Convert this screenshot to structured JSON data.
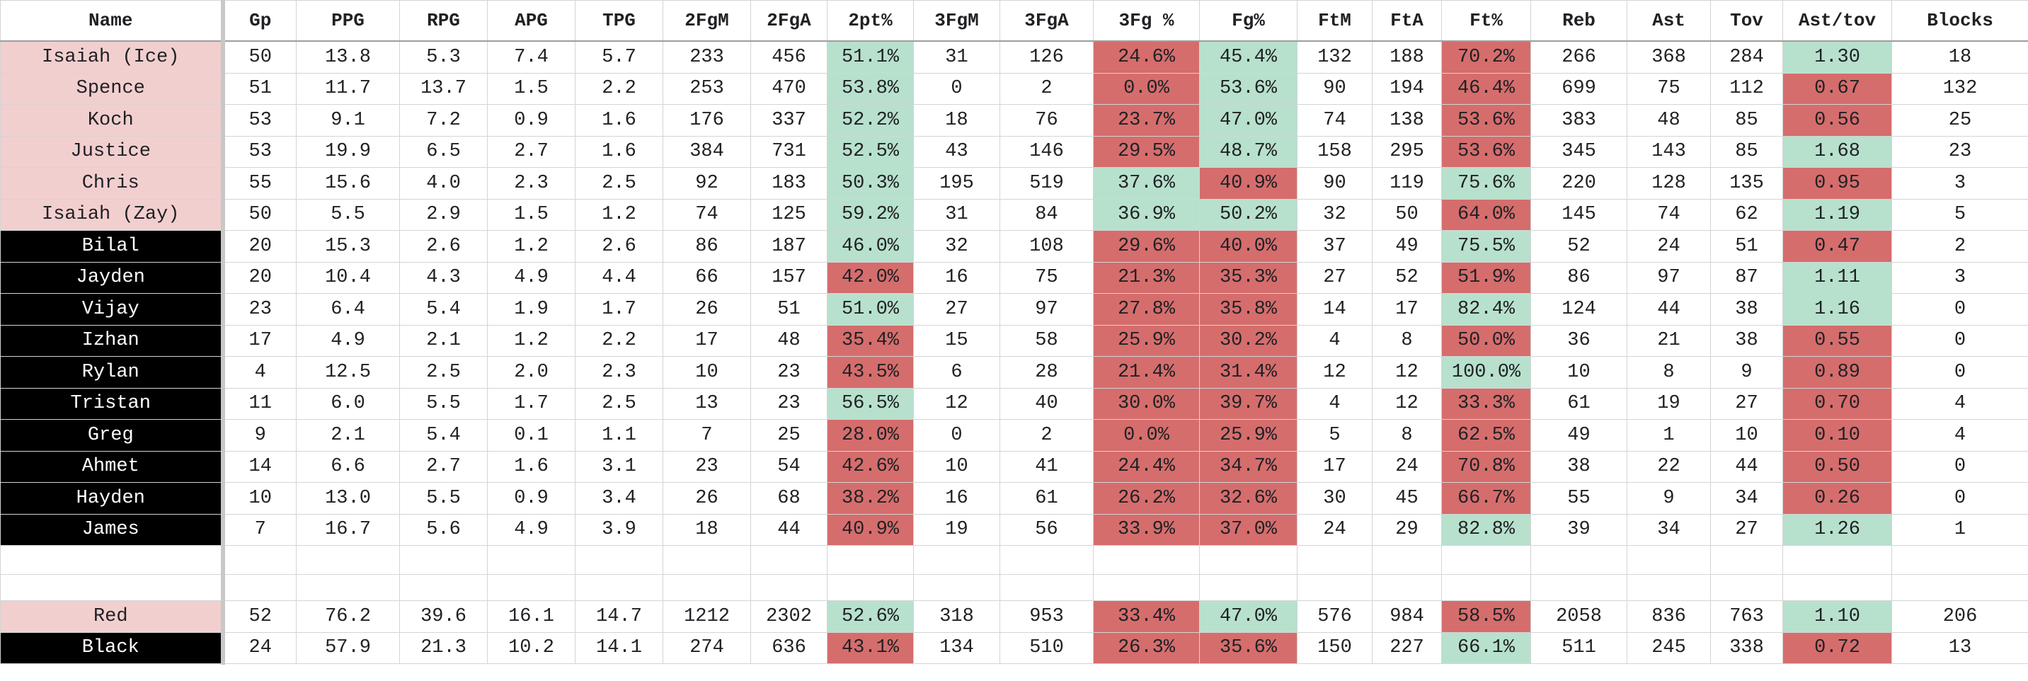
{
  "colors": {
    "good": "#b7e1cd",
    "bad": "#d56d6d",
    "red_team": "#f2cfcf",
    "black_team": "#000000"
  },
  "headers": [
    "Name",
    "Gp",
    "PPG",
    "RPG",
    "APG",
    "TPG",
    "2FgM",
    "2FgA",
    "2pt%",
    "3FgM",
    "3FgA",
    "3Fg %",
    "Fg%",
    "FtM",
    "FtA",
    "Ft%",
    "Reb",
    "Ast",
    "Tov",
    "Ast/tov",
    "Blocks"
  ],
  "players": [
    {
      "team": "red",
      "cells": [
        "Isaiah (Ice)",
        "50",
        "13.8",
        "5.3",
        "7.4",
        "5.7",
        "233",
        "456",
        "51.1%",
        "31",
        "126",
        "24.6%",
        "45.4%",
        "132",
        "188",
        "70.2%",
        "266",
        "368",
        "284",
        "1.30",
        "18"
      ],
      "hl": [
        "",
        "",
        "",
        "",
        "",
        "",
        "",
        "",
        "g",
        "",
        "",
        "r",
        "g",
        "",
        "",
        "r",
        "",
        "",
        "",
        "g",
        ""
      ]
    },
    {
      "team": "red",
      "cells": [
        "Spence",
        "51",
        "11.7",
        "13.7",
        "1.5",
        "2.2",
        "253",
        "470",
        "53.8%",
        "0",
        "2",
        "0.0%",
        "53.6%",
        "90",
        "194",
        "46.4%",
        "699",
        "75",
        "112",
        "0.67",
        "132"
      ],
      "hl": [
        "",
        "",
        "",
        "",
        "",
        "",
        "",
        "",
        "g",
        "",
        "",
        "r",
        "g",
        "",
        "",
        "r",
        "",
        "",
        "",
        "r",
        ""
      ]
    },
    {
      "team": "red",
      "cells": [
        "Koch",
        "53",
        "9.1",
        "7.2",
        "0.9",
        "1.6",
        "176",
        "337",
        "52.2%",
        "18",
        "76",
        "23.7%",
        "47.0%",
        "74",
        "138",
        "53.6%",
        "383",
        "48",
        "85",
        "0.56",
        "25"
      ],
      "hl": [
        "",
        "",
        "",
        "",
        "",
        "",
        "",
        "",
        "g",
        "",
        "",
        "r",
        "g",
        "",
        "",
        "r",
        "",
        "",
        "",
        "r",
        ""
      ]
    },
    {
      "team": "red",
      "cells": [
        "Justice",
        "53",
        "19.9",
        "6.5",
        "2.7",
        "1.6",
        "384",
        "731",
        "52.5%",
        "43",
        "146",
        "29.5%",
        "48.7%",
        "158",
        "295",
        "53.6%",
        "345",
        "143",
        "85",
        "1.68",
        "23"
      ],
      "hl": [
        "",
        "",
        "",
        "",
        "",
        "",
        "",
        "",
        "g",
        "",
        "",
        "r",
        "g",
        "",
        "",
        "r",
        "",
        "",
        "",
        "g",
        ""
      ]
    },
    {
      "team": "red",
      "cells": [
        "Chris",
        "55",
        "15.6",
        "4.0",
        "2.3",
        "2.5",
        "92",
        "183",
        "50.3%",
        "195",
        "519",
        "37.6%",
        "40.9%",
        "90",
        "119",
        "75.6%",
        "220",
        "128",
        "135",
        "0.95",
        "3"
      ],
      "hl": [
        "",
        "",
        "",
        "",
        "",
        "",
        "",
        "",
        "g",
        "",
        "",
        "g",
        "r",
        "",
        "",
        "g",
        "",
        "",
        "",
        "r",
        ""
      ]
    },
    {
      "team": "red",
      "cells": [
        "Isaiah (Zay)",
        "50",
        "5.5",
        "2.9",
        "1.5",
        "1.2",
        "74",
        "125",
        "59.2%",
        "31",
        "84",
        "36.9%",
        "50.2%",
        "32",
        "50",
        "64.0%",
        "145",
        "74",
        "62",
        "1.19",
        "5"
      ],
      "hl": [
        "",
        "",
        "",
        "",
        "",
        "",
        "",
        "",
        "g",
        "",
        "",
        "g",
        "g",
        "",
        "",
        "r",
        "",
        "",
        "",
        "g",
        ""
      ]
    },
    {
      "team": "black",
      "cells": [
        "Bilal",
        "20",
        "15.3",
        "2.6",
        "1.2",
        "2.6",
        "86",
        "187",
        "46.0%",
        "32",
        "108",
        "29.6%",
        "40.0%",
        "37",
        "49",
        "75.5%",
        "52",
        "24",
        "51",
        "0.47",
        "2"
      ],
      "hl": [
        "",
        "",
        "",
        "",
        "",
        "",
        "",
        "",
        "g",
        "",
        "",
        "r",
        "r",
        "",
        "",
        "g",
        "",
        "",
        "",
        "r",
        ""
      ]
    },
    {
      "team": "black",
      "cells": [
        "Jayden",
        "20",
        "10.4",
        "4.3",
        "4.9",
        "4.4",
        "66",
        "157",
        "42.0%",
        "16",
        "75",
        "21.3%",
        "35.3%",
        "27",
        "52",
        "51.9%",
        "86",
        "97",
        "87",
        "1.11",
        "3"
      ],
      "hl": [
        "",
        "",
        "",
        "",
        "",
        "",
        "",
        "",
        "r",
        "",
        "",
        "r",
        "r",
        "",
        "",
        "r",
        "",
        "",
        "",
        "g",
        ""
      ]
    },
    {
      "team": "black",
      "cells": [
        "Vijay",
        "23",
        "6.4",
        "5.4",
        "1.9",
        "1.7",
        "26",
        "51",
        "51.0%",
        "27",
        "97",
        "27.8%",
        "35.8%",
        "14",
        "17",
        "82.4%",
        "124",
        "44",
        "38",
        "1.16",
        "0"
      ],
      "hl": [
        "",
        "",
        "",
        "",
        "",
        "",
        "",
        "",
        "g",
        "",
        "",
        "r",
        "r",
        "",
        "",
        "g",
        "",
        "",
        "",
        "g",
        ""
      ]
    },
    {
      "team": "black",
      "cells": [
        "Izhan",
        "17",
        "4.9",
        "2.1",
        "1.2",
        "2.2",
        "17",
        "48",
        "35.4%",
        "15",
        "58",
        "25.9%",
        "30.2%",
        "4",
        "8",
        "50.0%",
        "36",
        "21",
        "38",
        "0.55",
        "0"
      ],
      "hl": [
        "",
        "",
        "",
        "",
        "",
        "",
        "",
        "",
        "r",
        "",
        "",
        "r",
        "r",
        "",
        "",
        "r",
        "",
        "",
        "",
        "r",
        ""
      ]
    },
    {
      "team": "black",
      "cells": [
        "Rylan",
        "4",
        "12.5",
        "2.5",
        "2.0",
        "2.3",
        "10",
        "23",
        "43.5%",
        "6",
        "28",
        "21.4%",
        "31.4%",
        "12",
        "12",
        "100.0%",
        "10",
        "8",
        "9",
        "0.89",
        "0"
      ],
      "hl": [
        "",
        "",
        "",
        "",
        "",
        "",
        "",
        "",
        "r",
        "",
        "",
        "r",
        "r",
        "",
        "",
        "g",
        "",
        "",
        "",
        "r",
        ""
      ]
    },
    {
      "team": "black",
      "cells": [
        "Tristan",
        "11",
        "6.0",
        "5.5",
        "1.7",
        "2.5",
        "13",
        "23",
        "56.5%",
        "12",
        "40",
        "30.0%",
        "39.7%",
        "4",
        "12",
        "33.3%",
        "61",
        "19",
        "27",
        "0.70",
        "4"
      ],
      "hl": [
        "",
        "",
        "",
        "",
        "",
        "",
        "",
        "",
        "g",
        "",
        "",
        "r",
        "r",
        "",
        "",
        "r",
        "",
        "",
        "",
        "r",
        ""
      ]
    },
    {
      "team": "black",
      "cells": [
        "Greg",
        "9",
        "2.1",
        "5.4",
        "0.1",
        "1.1",
        "7",
        "25",
        "28.0%",
        "0",
        "2",
        "0.0%",
        "25.9%",
        "5",
        "8",
        "62.5%",
        "49",
        "1",
        "10",
        "0.10",
        "4"
      ],
      "hl": [
        "",
        "",
        "",
        "",
        "",
        "",
        "",
        "",
        "r",
        "",
        "",
        "r",
        "r",
        "",
        "",
        "r",
        "",
        "",
        "",
        "r",
        ""
      ]
    },
    {
      "team": "black",
      "cells": [
        "Ahmet",
        "14",
        "6.6",
        "2.7",
        "1.6",
        "3.1",
        "23",
        "54",
        "42.6%",
        "10",
        "41",
        "24.4%",
        "34.7%",
        "17",
        "24",
        "70.8%",
        "38",
        "22",
        "44",
        "0.50",
        "0"
      ],
      "hl": [
        "",
        "",
        "",
        "",
        "",
        "",
        "",
        "",
        "r",
        "",
        "",
        "r",
        "r",
        "",
        "",
        "r",
        "",
        "",
        "",
        "r",
        ""
      ]
    },
    {
      "team": "black",
      "cells": [
        "Hayden",
        "10",
        "13.0",
        "5.5",
        "0.9",
        "3.4",
        "26",
        "68",
        "38.2%",
        "16",
        "61",
        "26.2%",
        "32.6%",
        "30",
        "45",
        "66.7%",
        "55",
        "9",
        "34",
        "0.26",
        "0"
      ],
      "hl": [
        "",
        "",
        "",
        "",
        "",
        "",
        "",
        "",
        "r",
        "",
        "",
        "r",
        "r",
        "",
        "",
        "r",
        "",
        "",
        "",
        "r",
        ""
      ]
    },
    {
      "team": "black",
      "cells": [
        "James",
        "7",
        "16.7",
        "5.6",
        "4.9",
        "3.9",
        "18",
        "44",
        "40.9%",
        "19",
        "56",
        "33.9%",
        "37.0%",
        "24",
        "29",
        "82.8%",
        "39",
        "34",
        "27",
        "1.26",
        "1"
      ],
      "hl": [
        "",
        "",
        "",
        "",
        "",
        "",
        "",
        "",
        "r",
        "",
        "",
        "r",
        "r",
        "",
        "",
        "g",
        "",
        "",
        "",
        "g",
        ""
      ]
    }
  ],
  "teams": [
    {
      "team": "red",
      "cells": [
        "Red",
        "52",
        "76.2",
        "39.6",
        "16.1",
        "14.7",
        "1212",
        "2302",
        "52.6%",
        "318",
        "953",
        "33.4%",
        "47.0%",
        "576",
        "984",
        "58.5%",
        "2058",
        "836",
        "763",
        "1.10",
        "206"
      ],
      "hl": [
        "",
        "",
        "",
        "",
        "",
        "",
        "",
        "",
        "g",
        "",
        "",
        "r",
        "g",
        "",
        "",
        "r",
        "",
        "",
        "",
        "g",
        ""
      ]
    },
    {
      "team": "black",
      "cells": [
        "Black",
        "24",
        "57.9",
        "21.3",
        "10.2",
        "14.1",
        "274",
        "636",
        "43.1%",
        "134",
        "510",
        "26.3%",
        "35.6%",
        "150",
        "227",
        "66.1%",
        "511",
        "245",
        "338",
        "0.72",
        "13"
      ],
      "hl": [
        "",
        "",
        "",
        "",
        "",
        "",
        "",
        "",
        "r",
        "",
        "",
        "r",
        "r",
        "",
        "",
        "g",
        "",
        "",
        "",
        "r",
        ""
      ]
    }
  ]
}
